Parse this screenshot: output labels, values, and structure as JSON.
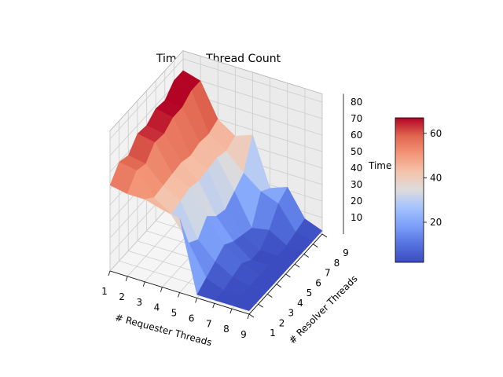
{
  "chart_data": {
    "type": "surface3d",
    "title": "Time vs. Thread Count",
    "xlabel": "# Requester Threads",
    "ylabel": "# Resolver Threads",
    "zlabel": "Time",
    "x_ticks": [
      "1",
      "2",
      "3",
      "4",
      "5",
      "6",
      "7",
      "8",
      "9"
    ],
    "y_ticks": [
      "1",
      "2",
      "3",
      "4",
      "5",
      "6",
      "7",
      "8",
      "9"
    ],
    "z_ticks": [
      "10",
      "20",
      "30",
      "40",
      "50",
      "60",
      "70",
      "80"
    ],
    "zlim": [
      0,
      85
    ],
    "colormap": "coolwarm",
    "colorbar": {
      "range": [
        2,
        67
      ],
      "ticks": [
        "20",
        "40",
        "60"
      ]
    },
    "requester_threads": [
      1,
      2,
      3,
      4,
      5,
      6,
      7,
      8,
      9
    ],
    "resolver_threads": [
      1,
      2,
      3,
      4,
      5,
      6,
      7,
      8,
      9
    ],
    "time_grid": [
      [
        52,
        60,
        58,
        65,
        64,
        68,
        67,
        73,
        73
      ],
      [
        50,
        58,
        56,
        63,
        62,
        66,
        66,
        70,
        70
      ],
      [
        50,
        45,
        46,
        47,
        48,
        46,
        48,
        47,
        50
      ],
      [
        47,
        38,
        40,
        42,
        40,
        41,
        42,
        40,
        43
      ],
      [
        45,
        24,
        20,
        28,
        22,
        20,
        25,
        30,
        47
      ],
      [
        2,
        6,
        10,
        14,
        10,
        8,
        6,
        22,
        18
      ],
      [
        2,
        2,
        4,
        6,
        2,
        2,
        8,
        18,
        22
      ],
      [
        2,
        2,
        2,
        2,
        2,
        2,
        2,
        4,
        6
      ],
      [
        2,
        2,
        2,
        2,
        2,
        2,
        2,
        2,
        2
      ]
    ]
  }
}
